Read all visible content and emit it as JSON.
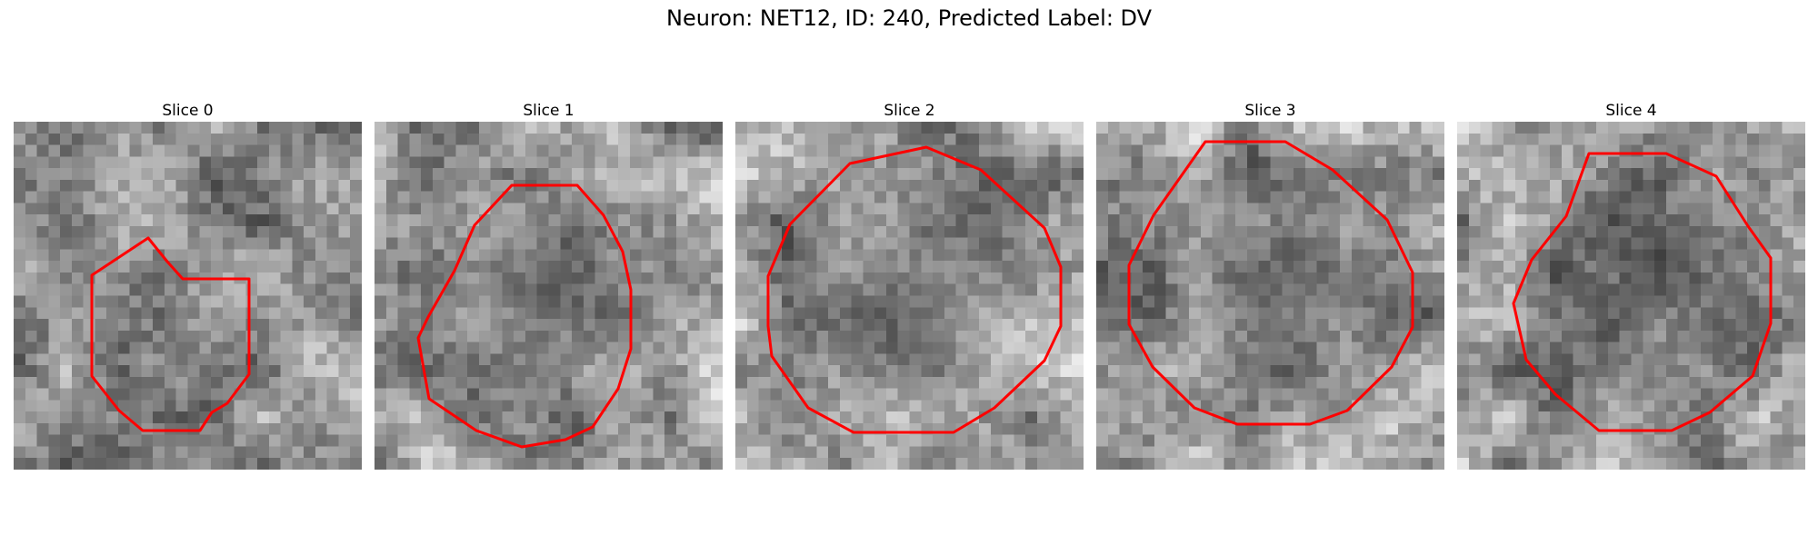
{
  "figure": {
    "title": "Neuron: NET12, ID: 240, Predicted Label: DV"
  },
  "colors": {
    "roi_outline": "#ff0000"
  },
  "slices": [
    {
      "label": "Slice 0"
    },
    {
      "label": "Slice 1"
    },
    {
      "label": "Slice 2"
    },
    {
      "label": "Slice 3"
    },
    {
      "label": "Slice 4"
    }
  ]
}
